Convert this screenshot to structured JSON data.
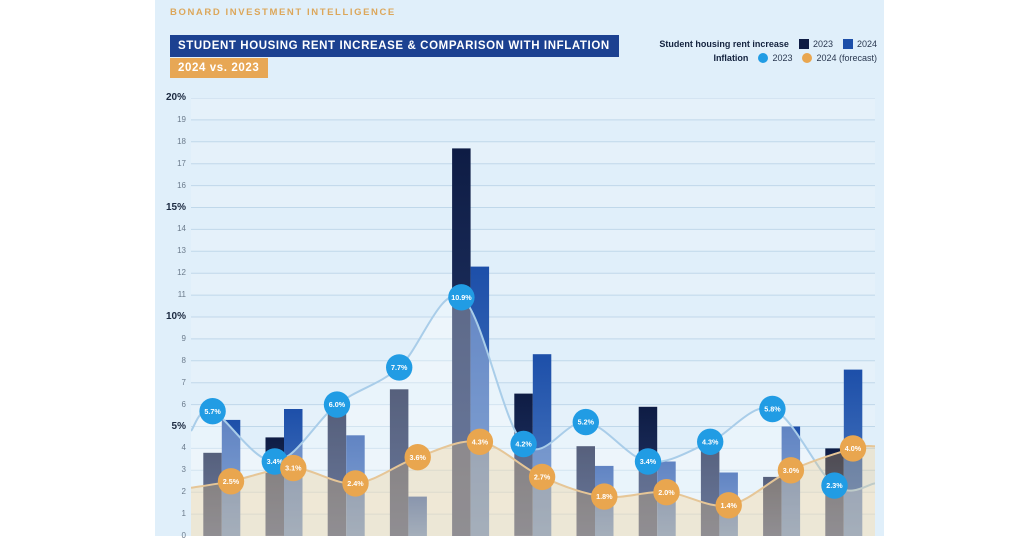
{
  "brand": "BONARD INVESTMENT INTELLIGENCE",
  "header": {
    "title": "STUDENT HOUSING RENT INCREASE & COMPARISON WITH INFLATION",
    "subtitle": "2024 vs. 2023"
  },
  "legend": {
    "rent_label": "Student housing rent increase",
    "rent_items": [
      {
        "label": "2023",
        "color": "#0e1c44"
      },
      {
        "label": "2024",
        "color": "#1d4fa9"
      }
    ],
    "inflation_label": "Inflation",
    "inflation_items": [
      {
        "label": "2023",
        "color": "#219ce4"
      },
      {
        "label": "2024 (forecast)",
        "color": "#e9a64f"
      }
    ]
  },
  "y_axis": {
    "min": 0,
    "max": 20,
    "ticks": [
      "20%",
      "19",
      "18",
      "17",
      "16",
      "15%",
      "14",
      "13",
      "12",
      "11",
      "10%",
      "9",
      "8",
      "7",
      "6",
      "5%",
      "4",
      "3",
      "2",
      "1",
      "0"
    ]
  },
  "chart_data": {
    "type": "bar",
    "note": "11 category groups; category axis labels are cut off below the image edge",
    "ylim": [
      0,
      20
    ],
    "grid": "horizontal, 1% steps",
    "legend_position": "top-right",
    "series": [
      {
        "name": "Student housing rent increase 2023",
        "type": "bar",
        "color": "#0e1c44",
        "values": [
          3.8,
          4.5,
          5.6,
          6.7,
          17.7,
          6.5,
          4.1,
          5.9,
          4.3,
          2.7,
          4.0
        ]
      },
      {
        "name": "Student housing rent increase 2024",
        "type": "bar",
        "color": "#1d4fa9",
        "values": [
          5.3,
          5.8,
          4.6,
          1.8,
          12.3,
          8.3,
          3.2,
          3.4,
          2.9,
          5.0,
          7.6
        ]
      },
      {
        "name": "Inflation 2023",
        "type": "line",
        "color": "#219ce4",
        "line_color": "#a9cde9",
        "area_color": "rgba(255,255,255,0.30)",
        "values": [
          5.7,
          3.4,
          6.0,
          7.7,
          10.9,
          4.2,
          5.2,
          3.4,
          4.3,
          5.8,
          2.3
        ],
        "point_labels": [
          "5.7%",
          "3.4%",
          "6.0%",
          "7.7%",
          "10.9%",
          "4.2%",
          "5.2%",
          "3.4%",
          "4.3%",
          "5.8%",
          "2.3%"
        ],
        "edge": {
          "start": 4.8,
          "end": 2.4
        }
      },
      {
        "name": "Inflation 2024 (forecast)",
        "type": "line",
        "color": "#e9a64f",
        "line_color": "#e6c697",
        "area_color": "rgba(244,196,120,0.28)",
        "values": [
          2.5,
          3.1,
          2.4,
          3.6,
          4.3,
          2.7,
          1.8,
          2.0,
          1.4,
          3.0,
          4.0
        ],
        "point_labels": [
          "2.5%",
          "3.1%",
          "2.4%",
          "3.6%",
          "4.3%",
          "2.7%",
          "1.8%",
          "2.0%",
          "1.4%",
          "3.0%",
          "4.0%"
        ],
        "edge": {
          "start": 2.2,
          "end": 4.1
        }
      }
    ]
  }
}
